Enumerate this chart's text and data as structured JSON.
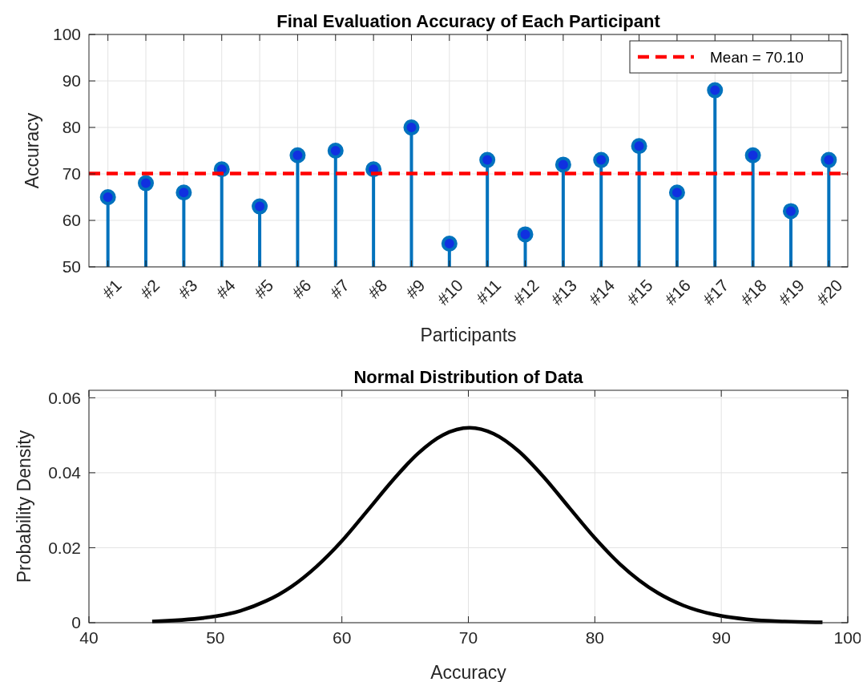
{
  "chart_data": [
    {
      "type": "lollipop",
      "title": "Final Evaluation Accuracy of Each Participant",
      "xlabel": "Participants",
      "ylabel": "Accuracy",
      "categories": [
        "#1",
        "#2",
        "#3",
        "#4",
        "#5",
        "#6",
        "#7",
        "#8",
        "#9",
        "#10",
        "#11",
        "#12",
        "#13",
        "#14",
        "#15",
        "#16",
        "#17",
        "#18",
        "#19",
        "#20"
      ],
      "values": [
        65,
        68,
        66,
        71,
        63,
        74,
        75,
        71,
        80,
        55,
        73,
        57,
        72,
        73,
        76,
        66,
        88,
        74,
        62,
        73
      ],
      "color": "#0072bd",
      "marker": "circle",
      "ylim": [
        50,
        100
      ],
      "yticks": [
        50,
        60,
        70,
        80,
        90,
        100
      ],
      "grid": true,
      "legend": "top right",
      "ref_lines": [
        {
          "axis": "y",
          "value": 70.1,
          "label": "Mean = 70.10",
          "color": "#ff0000",
          "line_style": "dashed"
        }
      ]
    },
    {
      "type": "line",
      "title": "Normal Distribution of Data",
      "xlabel": "Accuracy",
      "ylabel": "Probability Density",
      "series": [
        {
          "color": "#000000",
          "x": [
            45,
            50,
            52,
            54,
            55,
            56,
            58,
            60,
            62,
            64,
            66,
            68,
            70.1,
            72,
            74,
            76,
            78,
            80,
            82,
            85,
            87,
            90,
            92,
            95,
            98
          ],
          "values": [
            0.0003,
            0.0017,
            0.0032,
            0.0058,
            0.0075,
            0.0096,
            0.015,
            0.0218,
            0.0298,
            0.0379,
            0.0451,
            0.0501,
            0.052,
            0.0504,
            0.0457,
            0.0387,
            0.0306,
            0.0226,
            0.0156,
            0.0079,
            0.0046,
            0.0018,
            0.0009,
            0.0003,
            0.0001
          ]
        }
      ],
      "xlim": [
        40,
        100
      ],
      "xticks": [
        40,
        50,
        60,
        70,
        80,
        90,
        100
      ],
      "ylim": [
        0,
        0.062
      ],
      "yticks": [
        0,
        0.02,
        0.04,
        0.06
      ],
      "grid": true,
      "line_style": "solid"
    }
  ]
}
